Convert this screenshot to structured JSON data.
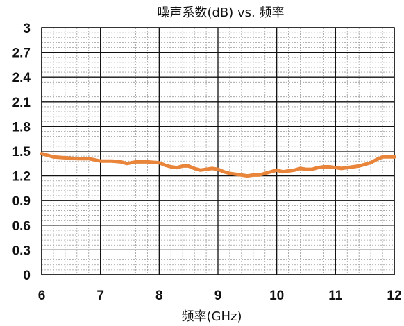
{
  "chart_data": {
    "type": "line",
    "title": "噪声系数(dB) vs. 频率",
    "xlabel": "频率(GHz)",
    "ylabel": "",
    "xlim": [
      6,
      12
    ],
    "ylim": [
      0,
      3
    ],
    "x_ticks": [
      "6",
      "7",
      "8",
      "9",
      "10",
      "11",
      "12"
    ],
    "y_ticks": [
      "0",
      "0.3",
      "0.6",
      "0.9",
      "1.2",
      "1.5",
      "1.8",
      "2.1",
      "2.4",
      "2.7",
      "3"
    ],
    "grid": true,
    "legend": "none",
    "line_color": "#e8853a",
    "series": [
      {
        "name": "",
        "x": [
          6.0,
          6.1,
          6.2,
          6.4,
          6.6,
          6.8,
          7.0,
          7.2,
          7.35,
          7.45,
          7.6,
          7.8,
          8.0,
          8.1,
          8.2,
          8.3,
          8.4,
          8.5,
          8.6,
          8.7,
          8.8,
          8.9,
          9.0,
          9.1,
          9.2,
          9.3,
          9.4,
          9.5,
          9.6,
          9.7,
          9.8,
          9.9,
          10.0,
          10.1,
          10.2,
          10.3,
          10.4,
          10.5,
          10.6,
          10.7,
          10.8,
          10.9,
          11.0,
          11.1,
          11.2,
          11.3,
          11.4,
          11.5,
          11.6,
          11.7,
          11.8,
          11.9,
          12.0
        ],
        "values": [
          1.47,
          1.45,
          1.43,
          1.42,
          1.41,
          1.41,
          1.38,
          1.38,
          1.37,
          1.35,
          1.37,
          1.37,
          1.36,
          1.33,
          1.31,
          1.3,
          1.32,
          1.32,
          1.29,
          1.27,
          1.28,
          1.29,
          1.28,
          1.25,
          1.23,
          1.22,
          1.21,
          1.2,
          1.21,
          1.21,
          1.23,
          1.25,
          1.27,
          1.25,
          1.26,
          1.27,
          1.29,
          1.28,
          1.28,
          1.3,
          1.31,
          1.31,
          1.3,
          1.29,
          1.3,
          1.31,
          1.32,
          1.34,
          1.36,
          1.4,
          1.43,
          1.43,
          1.43
        ]
      }
    ]
  }
}
